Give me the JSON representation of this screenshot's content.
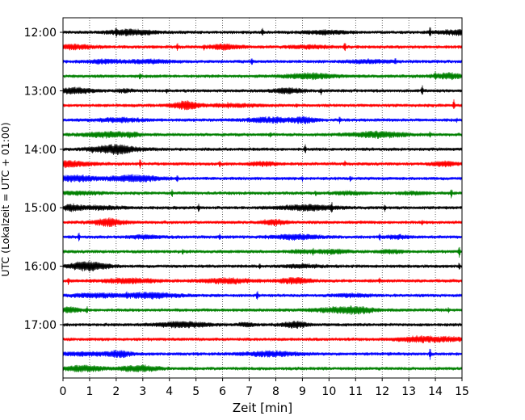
{
  "chart_data": {
    "type": "line",
    "xlabel": "Zeit  [min]",
    "ylabel": "UTC (Lokalzeit = UTC + 01:00)",
    "xlim": [
      0,
      15
    ],
    "x_ticks": [
      "0",
      "1",
      "2",
      "3",
      "4",
      "5",
      "6",
      "7",
      "8",
      "9",
      "10",
      "11",
      "12",
      "13",
      "14",
      "15"
    ],
    "y_ticks": [
      "12:00",
      "13:00",
      "14:00",
      "15:00",
      "16:00",
      "17:00"
    ],
    "trace_offsets_min": [
      0,
      15,
      30,
      45,
      60,
      75,
      90,
      105,
      120,
      135,
      150,
      165,
      180,
      195,
      210,
      225,
      240,
      255,
      270,
      285,
      300,
      315,
      330,
      345
    ],
    "colors": [
      "#000000",
      "#ff0000",
      "#0000ff",
      "#008000"
    ],
    "grid": "vertical dotted",
    "series": [
      {
        "start": "12:00",
        "events": [
          [
            2.0,
            1.0
          ],
          [
            7.5,
            0.7
          ],
          [
            13.8,
            0.9
          ]
        ]
      },
      {
        "start": "12:15",
        "events": [
          [
            4.3,
            0.6
          ],
          [
            5.3,
            0.5
          ],
          [
            10.6,
            0.9
          ]
        ]
      },
      {
        "start": "12:30",
        "events": [
          [
            1.3,
            0.6
          ],
          [
            7.1,
            0.7
          ],
          [
            12.5,
            0.6
          ]
        ]
      },
      {
        "start": "12:45",
        "events": [
          [
            2.9,
            0.7
          ],
          [
            8.7,
            0.5
          ],
          [
            14.0,
            0.8
          ]
        ]
      },
      {
        "start": "13:00",
        "events": [
          [
            3.9,
            0.5
          ],
          [
            9.7,
            0.6
          ],
          [
            13.5,
            0.9
          ]
        ]
      },
      {
        "start": "13:15",
        "events": [
          [
            6.2,
            0.5
          ],
          [
            8.8,
            0.4
          ],
          [
            14.7,
            0.9
          ]
        ]
      },
      {
        "start": "13:30",
        "events": [
          [
            10.4,
            0.6
          ],
          [
            14.8,
            0.4
          ]
        ]
      },
      {
        "start": "13:45",
        "events": [
          [
            1.1,
            0.6
          ],
          [
            7.8,
            0.5
          ],
          [
            13.8,
            0.6
          ]
        ]
      },
      {
        "start": "14:00",
        "events": [
          [
            1.1,
            0.6
          ],
          [
            2.9,
            0.5
          ],
          [
            9.1,
            0.8
          ]
        ]
      },
      {
        "start": "14:15",
        "events": [
          [
            2.9,
            0.8
          ],
          [
            5.9,
            0.6
          ],
          [
            10.6,
            0.5
          ]
        ]
      },
      {
        "start": "14:30",
        "events": [
          [
            4.3,
            0.7
          ],
          [
            9.0,
            0.5
          ],
          [
            10.8,
            0.5
          ]
        ]
      },
      {
        "start": "14:45",
        "events": [
          [
            4.1,
            0.7
          ],
          [
            9.5,
            0.5
          ],
          [
            14.6,
            0.8
          ]
        ]
      },
      {
        "start": "15:00",
        "events": [
          [
            5.1,
            0.7
          ],
          [
            10.1,
            0.9
          ],
          [
            12.1,
            0.6
          ]
        ]
      },
      {
        "start": "15:15",
        "events": [
          [
            1.3,
            0.5
          ],
          [
            7.6,
            0.5
          ],
          [
            13.5,
            0.5
          ]
        ]
      },
      {
        "start": "15:30",
        "events": [
          [
            0.6,
            0.7
          ],
          [
            5.9,
            0.6
          ],
          [
            11.9,
            0.7
          ]
        ]
      },
      {
        "start": "15:45",
        "events": [
          [
            4.5,
            0.5
          ],
          [
            9.4,
            0.6
          ],
          [
            14.9,
            0.9
          ]
        ]
      },
      {
        "start": "16:00",
        "events": [
          [
            7.4,
            0.5
          ],
          [
            14.9,
            0.7
          ]
        ]
      },
      {
        "start": "16:15",
        "events": [
          [
            0.2,
            0.6
          ],
          [
            3.3,
            0.5
          ],
          [
            11.9,
            0.5
          ]
        ]
      },
      {
        "start": "16:30",
        "events": [
          [
            2.4,
            0.7
          ],
          [
            7.3,
            0.8
          ]
        ]
      },
      {
        "start": "16:45",
        "events": [
          [
            0.9,
            0.6
          ],
          [
            14.5,
            0.5
          ]
        ]
      },
      {
        "start": "17:00",
        "events": []
      },
      {
        "start": "17:15",
        "events": []
      },
      {
        "start": "17:30",
        "events": [
          [
            13.8,
            0.9
          ]
        ]
      },
      {
        "start": "17:45",
        "events": []
      }
    ]
  }
}
